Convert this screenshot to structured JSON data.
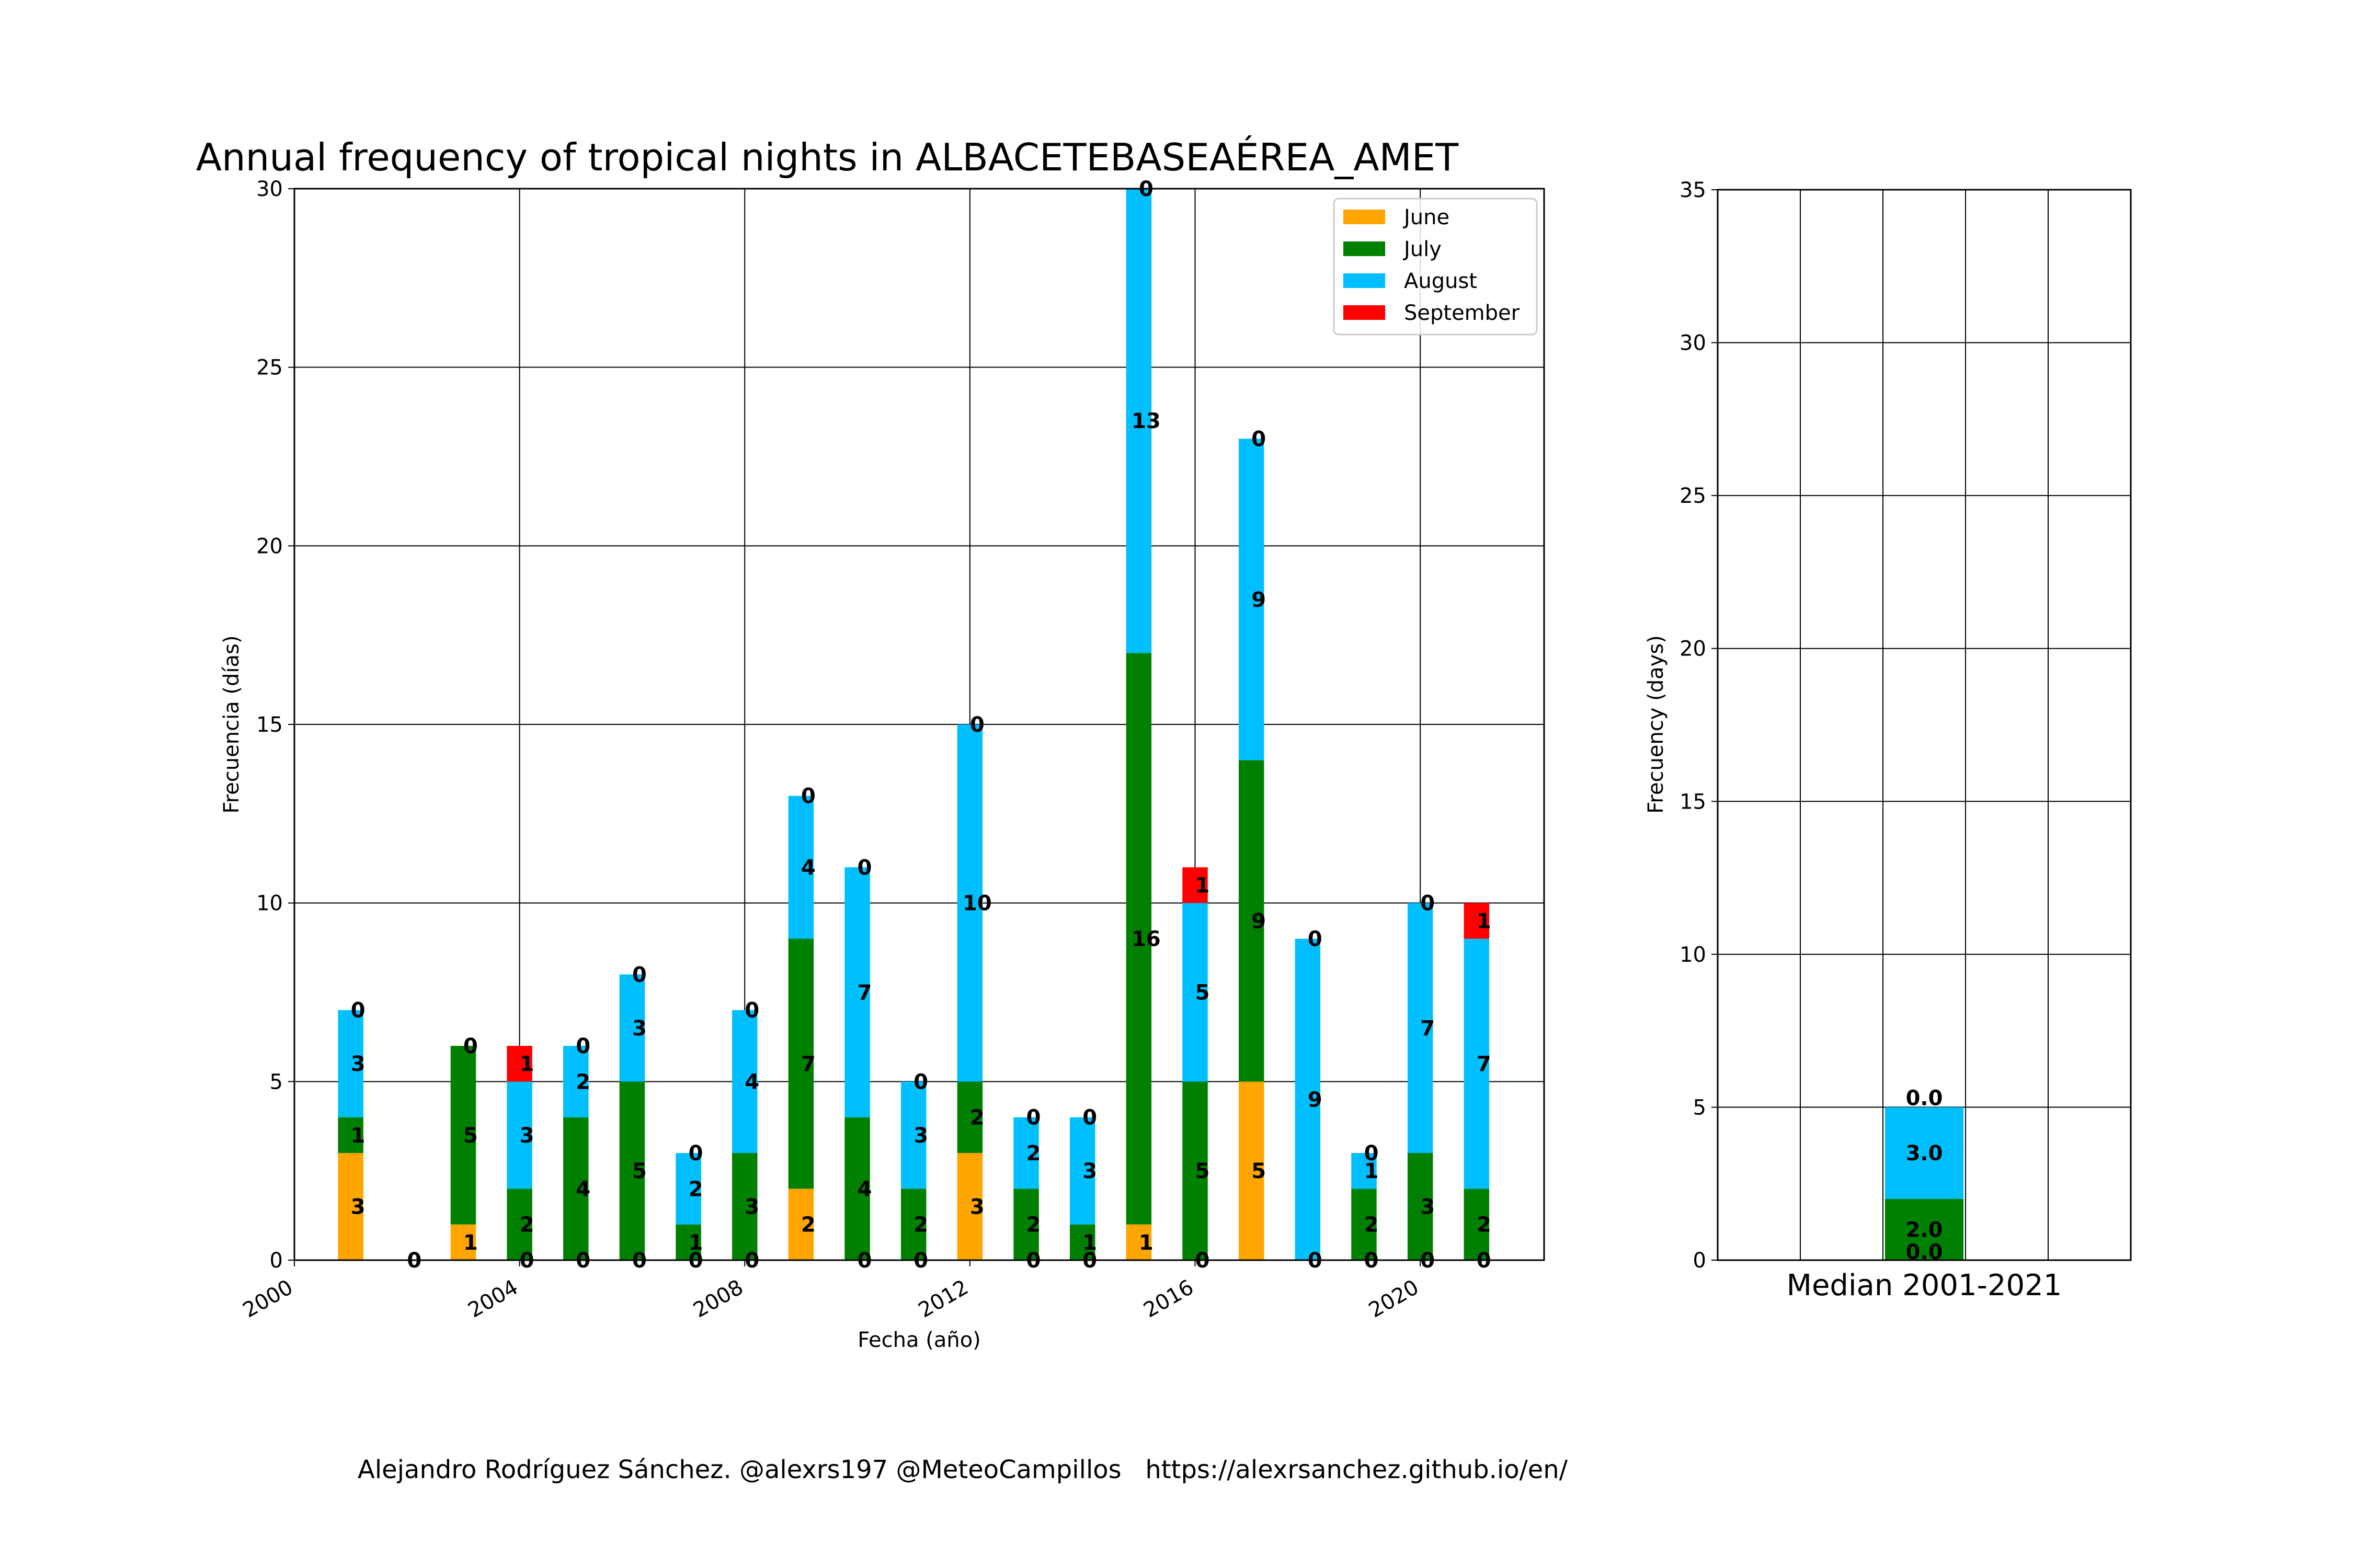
{
  "credit": "Alejandro Rodríguez Sánchez. @alexrs197 @MeteoCampillos   https://alexrsanchez.github.io/en/",
  "chart_data": [
    {
      "type": "bar",
      "stacked": true,
      "title": "Annual frequency of tropical nights in ALBACETEBASEAÉREA_AMET",
      "xlabel": "Fecha (año)",
      "ylabel": "Frecuencia (días)",
      "xlim": [
        2000,
        2022.2
      ],
      "ylim": [
        0,
        30
      ],
      "xticks": [
        "2000",
        "2004",
        "2008",
        "2012",
        "2016",
        "2020"
      ],
      "yticks": [
        "0",
        "5",
        "10",
        "15",
        "20",
        "25",
        "30"
      ],
      "grid": true,
      "legend_position": "top-right",
      "categories": [
        2001,
        2002,
        2003,
        2004,
        2005,
        2006,
        2007,
        2008,
        2009,
        2010,
        2011,
        2012,
        2013,
        2014,
        2015,
        2016,
        2017,
        2018,
        2019,
        2020,
        2021
      ],
      "series": [
        {
          "name": "June",
          "color": "#ffa500",
          "values": [
            3,
            0,
            1,
            0,
            0,
            0,
            0,
            0,
            2,
            0,
            0,
            3,
            0,
            0,
            1,
            0,
            5,
            0,
            0,
            0,
            0
          ]
        },
        {
          "name": "July",
          "color": "#008000",
          "values": [
            1,
            0,
            5,
            2,
            4,
            5,
            1,
            3,
            7,
            4,
            2,
            2,
            2,
            1,
            16,
            5,
            9,
            0,
            2,
            3,
            2
          ]
        },
        {
          "name": "August",
          "color": "#00bfff",
          "values": [
            3,
            0,
            0,
            3,
            2,
            3,
            2,
            4,
            4,
            7,
            3,
            10,
            2,
            3,
            13,
            5,
            9,
            9,
            1,
            7,
            7
          ]
        },
        {
          "name": "September",
          "color": "#ff0000",
          "values": [
            0,
            0,
            0,
            1,
            0,
            0,
            0,
            0,
            0,
            0,
            0,
            0,
            0,
            0,
            0,
            1,
            0,
            0,
            0,
            0,
            1
          ]
        }
      ],
      "labels": {
        "June": [
          "3",
          "0",
          "1",
          "0",
          "0",
          "0",
          "0",
          "0",
          "2",
          "0",
          "0",
          "3",
          "0",
          "0",
          "1",
          "0",
          "5",
          "0",
          "0",
          "0",
          "0"
        ],
        "July": [
          "1",
          "",
          "5",
          "2",
          "4",
          "5",
          "1",
          "3",
          "7",
          "4",
          "2",
          "2",
          "2",
          "1",
          "16",
          "5",
          "9",
          "",
          "2",
          "3",
          "2"
        ],
        "August": [
          "3",
          "",
          "",
          "3",
          "2",
          "3",
          "2",
          "4",
          "4",
          "7",
          "3",
          "10",
          "2",
          "3",
          "13",
          "5",
          "9",
          "9",
          "1",
          "7",
          "7"
        ],
        "September": [
          "0",
          "",
          "0",
          "1",
          "0",
          "0",
          "0",
          "0",
          "0",
          "0",
          "0",
          "0",
          "0",
          "0",
          "0",
          "1",
          "0",
          "0",
          "0",
          "0",
          "1"
        ]
      }
    },
    {
      "type": "bar",
      "stacked": true,
      "title": "",
      "xlabel": "Median 2001-2021",
      "ylabel": "Frecuency (days)",
      "ylim": [
        0,
        35
      ],
      "yticks": [
        "0",
        "5",
        "10",
        "15",
        "20",
        "25",
        "30",
        "35"
      ],
      "grid": true,
      "series": [
        {
          "name": "June",
          "color": "#ffa500",
          "value": 0.0,
          "label": "0.0"
        },
        {
          "name": "July",
          "color": "#008000",
          "value": 2.0,
          "label": "2.0"
        },
        {
          "name": "August",
          "color": "#00bfff",
          "value": 3.0,
          "label": "3.0"
        },
        {
          "name": "September",
          "color": "#ff0000",
          "value": 0.0,
          "label": "0.0"
        }
      ]
    }
  ]
}
